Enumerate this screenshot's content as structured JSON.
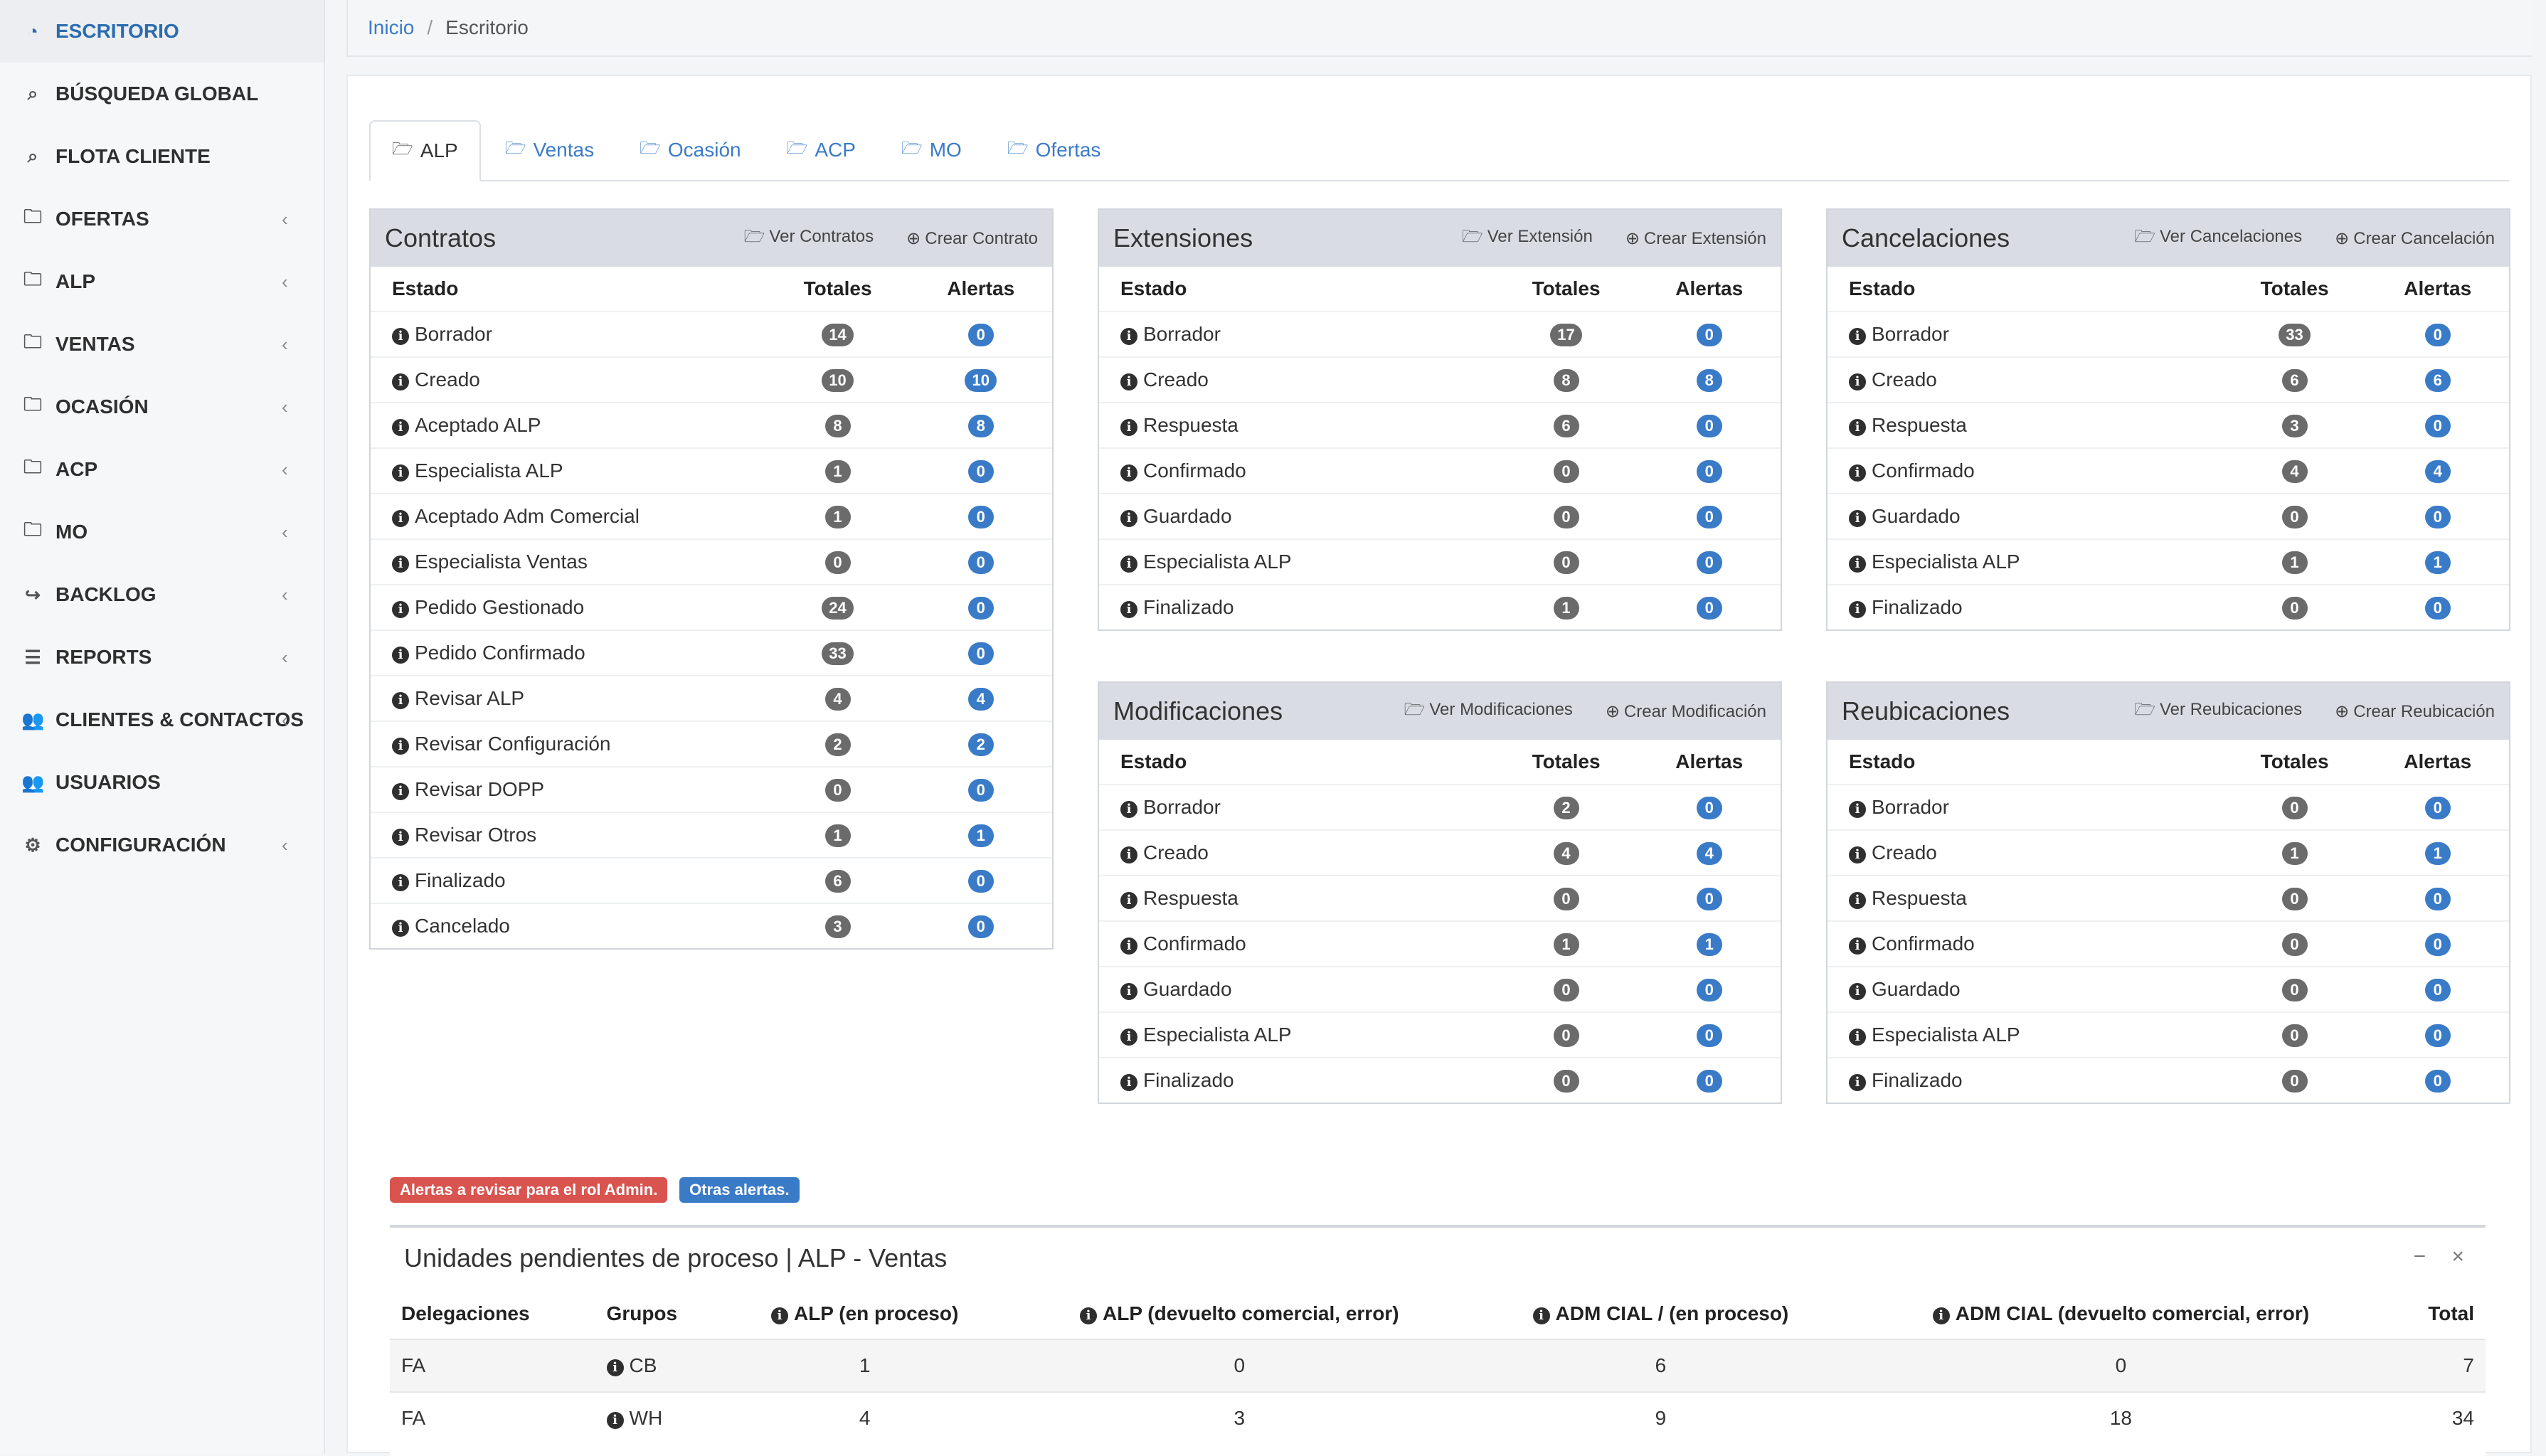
{
  "sidebar": {
    "items": [
      {
        "label": "ESCRITORIO",
        "icon": "dashboard-icon",
        "active": true,
        "chevron": false
      },
      {
        "label": "BÚSQUEDA GLOBAL",
        "icon": "search-icon",
        "chevron": false
      },
      {
        "label": "FLOTA CLIENTE",
        "icon": "search-icon",
        "chevron": false
      },
      {
        "label": "OFERTAS",
        "icon": "folder-icon",
        "chevron": true
      },
      {
        "label": "ALP",
        "icon": "folder-icon",
        "chevron": true
      },
      {
        "label": "VENTAS",
        "icon": "folder-icon",
        "chevron": true
      },
      {
        "label": "OCASIÓN",
        "icon": "folder-icon",
        "chevron": true
      },
      {
        "label": "ACP",
        "icon": "folder-icon",
        "chevron": true
      },
      {
        "label": "MO",
        "icon": "folder-icon",
        "chevron": true
      },
      {
        "label": "BACKLOG",
        "icon": "share-icon",
        "chevron": true
      },
      {
        "label": "REPORTS",
        "icon": "list-icon",
        "chevron": true
      },
      {
        "label": "CLIENTES & CONTACTOS",
        "icon": "users-icon",
        "chevron": true
      },
      {
        "label": "USUARIOS",
        "icon": "users-icon",
        "chevron": false
      },
      {
        "label": "CONFIGURACIÓN",
        "icon": "cogs-icon",
        "chevron": true
      }
    ]
  },
  "breadcrumb": {
    "home": "Inicio",
    "separator": "/",
    "current": "Escritorio"
  },
  "tabs": [
    "ALP",
    "Ventas",
    "Ocasión",
    "ACP",
    "MO",
    "Ofertas"
  ],
  "table_headers": {
    "estado": "Estado",
    "totales": "Totales",
    "alertas": "Alertas"
  },
  "panels": {
    "contratos": {
      "title": "Contratos",
      "link1": "Ver Contratos",
      "link2": "Crear Contrato",
      "rows": [
        {
          "estado": "Borrador",
          "totales": "14",
          "alertas": "0"
        },
        {
          "estado": "Creado",
          "totales": "10",
          "alertas": "10"
        },
        {
          "estado": "Aceptado ALP",
          "totales": "8",
          "alertas": "8"
        },
        {
          "estado": "Especialista ALP",
          "totales": "1",
          "alertas": "0"
        },
        {
          "estado": "Aceptado Adm Comercial",
          "totales": "1",
          "alertas": "0"
        },
        {
          "estado": "Especialista Ventas",
          "totales": "0",
          "alertas": "0"
        },
        {
          "estado": "Pedido Gestionado",
          "totales": "24",
          "alertas": "0"
        },
        {
          "estado": "Pedido Confirmado",
          "totales": "33",
          "alertas": "0"
        },
        {
          "estado": "Revisar ALP",
          "totales": "4",
          "alertas": "4"
        },
        {
          "estado": "Revisar Configuración",
          "totales": "2",
          "alertas": "2"
        },
        {
          "estado": "Revisar DOPP",
          "totales": "0",
          "alertas": "0"
        },
        {
          "estado": "Revisar Otros",
          "totales": "1",
          "alertas": "1"
        },
        {
          "estado": "Finalizado",
          "totales": "6",
          "alertas": "0"
        },
        {
          "estado": "Cancelado",
          "totales": "3",
          "alertas": "0"
        }
      ]
    },
    "extensiones": {
      "title": "Extensiones",
      "link1": "Ver Extensión",
      "link2": "Crear Extensión",
      "rows": [
        {
          "estado": "Borrador",
          "totales": "17",
          "alertas": "0"
        },
        {
          "estado": "Creado",
          "totales": "8",
          "alertas": "8"
        },
        {
          "estado": "Respuesta",
          "totales": "6",
          "alertas": "0"
        },
        {
          "estado": "Confirmado",
          "totales": "0",
          "alertas": "0"
        },
        {
          "estado": "Guardado",
          "totales": "0",
          "alertas": "0"
        },
        {
          "estado": "Especialista ALP",
          "totales": "0",
          "alertas": "0"
        },
        {
          "estado": "Finalizado",
          "totales": "1",
          "alertas": "0"
        }
      ]
    },
    "cancelaciones": {
      "title": "Cancelaciones",
      "link1": "Ver Cancelaciones",
      "link2": "Crear Cancelación",
      "rows": [
        {
          "estado": "Borrador",
          "totales": "33",
          "alertas": "0"
        },
        {
          "estado": "Creado",
          "totales": "6",
          "alertas": "6"
        },
        {
          "estado": "Respuesta",
          "totales": "3",
          "alertas": "0"
        },
        {
          "estado": "Confirmado",
          "totales": "4",
          "alertas": "4"
        },
        {
          "estado": "Guardado",
          "totales": "0",
          "alertas": "0"
        },
        {
          "estado": "Especialista ALP",
          "totales": "1",
          "alertas": "1"
        },
        {
          "estado": "Finalizado",
          "totales": "0",
          "alertas": "0"
        }
      ]
    },
    "modificaciones": {
      "title": "Modificaciones",
      "link1": "Ver Modificaciones",
      "link2": "Crear Modificación",
      "rows": [
        {
          "estado": "Borrador",
          "totales": "2",
          "alertas": "0"
        },
        {
          "estado": "Creado",
          "totales": "4",
          "alertas": "4"
        },
        {
          "estado": "Respuesta",
          "totales": "0",
          "alertas": "0"
        },
        {
          "estado": "Confirmado",
          "totales": "1",
          "alertas": "1"
        },
        {
          "estado": "Guardado",
          "totales": "0",
          "alertas": "0"
        },
        {
          "estado": "Especialista ALP",
          "totales": "0",
          "alertas": "0"
        },
        {
          "estado": "Finalizado",
          "totales": "0",
          "alertas": "0"
        }
      ]
    },
    "reubicaciones": {
      "title": "Reubicaciones",
      "link1": "Ver Reubicaciones",
      "link2": "Crear Reubicación",
      "rows": [
        {
          "estado": "Borrador",
          "totales": "0",
          "alertas": "0"
        },
        {
          "estado": "Creado",
          "totales": "1",
          "alertas": "1"
        },
        {
          "estado": "Respuesta",
          "totales": "0",
          "alertas": "0"
        },
        {
          "estado": "Confirmado",
          "totales": "0",
          "alertas": "0"
        },
        {
          "estado": "Guardado",
          "totales": "0",
          "alertas": "0"
        },
        {
          "estado": "Especialista ALP",
          "totales": "0",
          "alertas": "0"
        },
        {
          "estado": "Finalizado",
          "totales": "0",
          "alertas": "0"
        }
      ]
    }
  },
  "legend": {
    "admin_alerts": "Alertas a revisar para el rol Admin.",
    "other_alerts": "Otras alertas."
  },
  "pending": {
    "title": "Unidades pendientes de proceso | ALP - Ventas",
    "headers": [
      "Delegaciones",
      "Grupos",
      "ALP (en proceso)",
      "ALP (devuelto comercial, error)",
      "ADM CIAL / (en proceso)",
      "ADM CIAL (devuelto comercial, error)",
      "Total"
    ],
    "rows": [
      {
        "delegacion": "FA",
        "grupo": "CB",
        "alp_proceso": "1",
        "alp_devuelto": "0",
        "adm_proceso": "6",
        "adm_devuelto": "0",
        "total": "7"
      },
      {
        "delegacion": "FA",
        "grupo": "WH",
        "alp_proceso": "4",
        "alp_devuelto": "3",
        "adm_proceso": "9",
        "adm_devuelto": "18",
        "total": "34"
      }
    ]
  },
  "colors": {
    "accent": "#3a7bc8",
    "danger": "#d9534f",
    "badge_gray": "#6b6b6b"
  }
}
